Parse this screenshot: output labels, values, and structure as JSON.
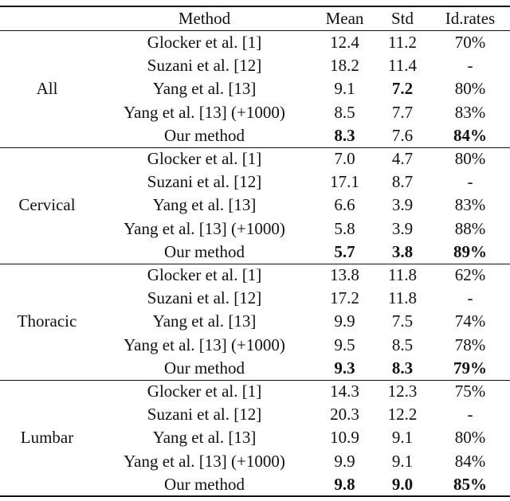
{
  "table": {
    "header": [
      "Method",
      "Mean",
      "Std",
      "Id.rates"
    ],
    "groups": [
      {
        "label": "All",
        "rows": [
          [
            "Glocker et al. [1]",
            "12.4",
            "11.2",
            "70%"
          ],
          [
            "Suzani et al. [12]",
            "18.2",
            "11.4",
            "-"
          ],
          [
            "Yang et al. [13]",
            "9.1",
            "7.2",
            "80%"
          ],
          [
            "Yang et al. [13] (+1000)",
            "8.5",
            "7.7",
            "83%"
          ],
          [
            "Our method",
            "8.3",
            "7.6",
            "84%"
          ]
        ]
      },
      {
        "label": "Cervical",
        "rows": [
          [
            "Glocker et al. [1]",
            "7.0",
            "4.7",
            "80%"
          ],
          [
            "Suzani et al. [12]",
            "17.1",
            "8.7",
            "-"
          ],
          [
            "Yang et al. [13]",
            "6.6",
            "3.9",
            "83%"
          ],
          [
            "Yang et al. [13] (+1000)",
            "5.8",
            "3.9",
            "88%"
          ],
          [
            "Our method",
            "5.7",
            "3.8",
            "89%"
          ]
        ]
      },
      {
        "label": "Thoracic",
        "rows": [
          [
            "Glocker et al. [1]",
            "13.8",
            "11.8",
            "62%"
          ],
          [
            "Suzani et al. [12]",
            "17.2",
            "11.8",
            "-"
          ],
          [
            "Yang et al. [13]",
            "9.9",
            "7.5",
            "74%"
          ],
          [
            "Yang et al. [13] (+1000)",
            "9.5",
            "8.5",
            "78%"
          ],
          [
            "Our method",
            "9.3",
            "8.3",
            "79%"
          ]
        ]
      },
      {
        "label": "Lumbar",
        "rows": [
          [
            "Glocker et al. [1]",
            "14.3",
            "12.3",
            "75%"
          ],
          [
            "Suzani et al. [12]",
            "20.3",
            "12.2",
            "-"
          ],
          [
            "Yang et al. [13]",
            "10.9",
            "9.1",
            "80%"
          ],
          [
            "Yang et al. [13] (+1000)",
            "9.9",
            "9.1",
            "84%"
          ],
          [
            "Our method",
            "9.8",
            "9.0",
            "85%"
          ]
        ]
      }
    ]
  }
}
